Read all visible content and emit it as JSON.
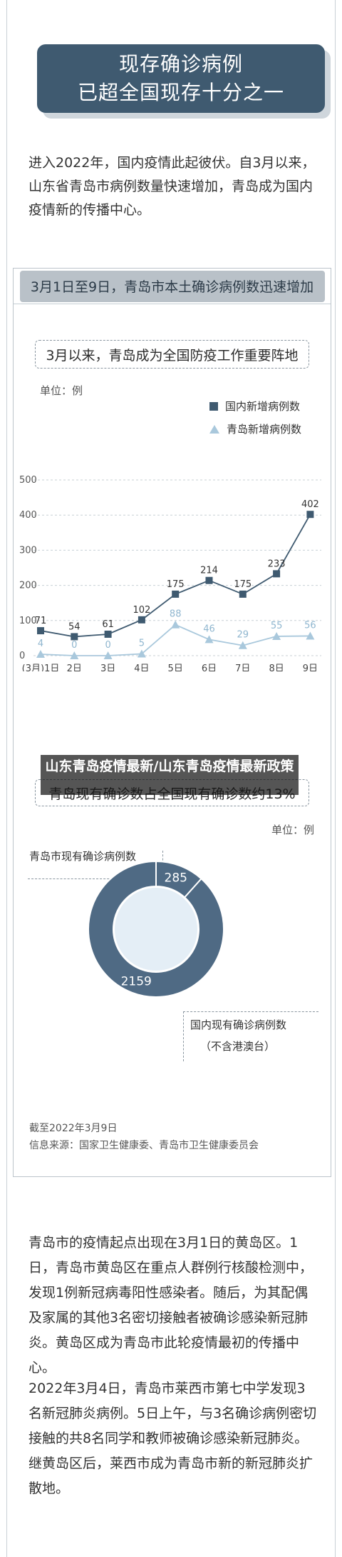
{
  "header": {
    "title_line1": "现存确诊病例",
    "title_line2": "已超全国现存十分之一"
  },
  "intro": "进入2022年，国内疫情此起彼伏。自3月以来，山东省青岛市病例数量快速增加，青岛成为国内疫情新的传播中心。",
  "card": {
    "heading": "3月1日至9日，青岛市本土确诊病例数迅速增加",
    "subtitle1": "3月以来，青岛成为全国防疫工作重要阵地",
    "unit1": "单位：例",
    "subtitle2": "青岛现有确诊数占全国现有确诊数约13%",
    "unit2": "单位：例",
    "date_note": "截至2022年3月9日",
    "source": "信息来源：国家卫生健康委、青岛市卫生健康委员会"
  },
  "overlay_text": "山东青岛疫情最新/山东青岛疫情最新政策",
  "chart_data": [
    {
      "type": "line",
      "title": "3月1日至9日，青岛市本土确诊病例数迅速增加",
      "subtitle": "3月以来，青岛成为全国防疫工作重要阵地",
      "ylabel": "单位：例",
      "x": [
        "(3月)1日",
        "2日",
        "3日",
        "4日",
        "5日",
        "6日",
        "7日",
        "8日",
        "9日"
      ],
      "y_ticks": [
        "0",
        "100",
        "200",
        "300",
        "400",
        "500"
      ],
      "ylim": [
        0,
        500
      ],
      "grid": true,
      "legend_position": "top-right",
      "series": [
        {
          "name": "国内新增病例数",
          "color": "#3f5a70",
          "marker": "square",
          "values": [
            71,
            54,
            61,
            102,
            175,
            214,
            175,
            233,
            402
          ]
        },
        {
          "name": "青岛新增病例数",
          "color": "#a9c8dc",
          "marker": "triangle",
          "values": [
            4,
            0,
            0,
            5,
            88,
            46,
            29,
            55,
            56
          ]
        }
      ]
    },
    {
      "type": "pie",
      "title": "青岛现有确诊数占全国现有确诊数约13%",
      "unit": "单位：例",
      "slices": [
        {
          "name": "青岛市现有确诊病例数",
          "value": 285,
          "color": "#e4eef6"
        },
        {
          "name": "国内现有确诊病例数",
          "value": 2159,
          "color": "#4f6a84"
        }
      ],
      "labels": [
        "285",
        "2159"
      ],
      "annotations": [
        "青岛市现有确诊病例数",
        "国内现有确诊病例数",
        "（不含港澳台）"
      ]
    }
  ],
  "para2": "青岛市的疫情起点出现在3月1日的黄岛区。1日，青岛市黄岛区在重点人群例行核酸检测中，发现1例新冠病毒阳性感染者。随后，为其配偶及家属的其他3名密切接触者被确诊感染新冠肺炎。黄岛区成为青岛市此轮疫情最初的传播中心。",
  "para3": "2022年3月4日，青岛市莱西市第七中学发现3名新冠肺炎病例。5日上午，与3名确诊病例密切接触的共8名同学和教师被确诊感染新冠肺炎。继黄岛区后，莱西市成为青岛市新的新冠肺炎扩散地。"
}
